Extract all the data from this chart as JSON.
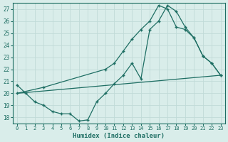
{
  "xlabel": "Humidex (Indice chaleur)",
  "xlim": [
    -0.5,
    23.5
  ],
  "ylim": [
    17.5,
    27.5
  ],
  "yticks": [
    18,
    19,
    20,
    21,
    22,
    23,
    24,
    25,
    26,
    27
  ],
  "xticks": [
    0,
    1,
    2,
    3,
    4,
    5,
    6,
    7,
    8,
    9,
    10,
    11,
    12,
    13,
    14,
    15,
    16,
    17,
    18,
    19,
    20,
    21,
    22,
    23
  ],
  "background_color": "#d9edea",
  "grid_color": "#c0dbd8",
  "line_color": "#1e6e63",
  "curve1_x": [
    0,
    1,
    2,
    3,
    4,
    5,
    6,
    7,
    8,
    9,
    10,
    11,
    12,
    13,
    14,
    15,
    16,
    17,
    18,
    19,
    20,
    21,
    22,
    23
  ],
  "curve1_y": [
    20.7,
    20.0,
    19.3,
    19.0,
    18.5,
    18.3,
    18.3,
    17.7,
    17.8,
    19.3,
    20.0,
    20.8,
    21.5,
    22.5,
    21.2,
    25.3,
    26.0,
    27.3,
    26.8,
    25.5,
    24.6,
    23.1,
    22.5,
    21.5
  ],
  "curve2_x": [
    0,
    3,
    10,
    11,
    12,
    13,
    14,
    15,
    16,
    17,
    18,
    19,
    20,
    21,
    22,
    23
  ],
  "curve2_y": [
    20.0,
    20.5,
    22.0,
    22.5,
    23.5,
    24.5,
    25.3,
    26.0,
    27.3,
    27.0,
    25.5,
    25.3,
    24.6,
    23.1,
    22.5,
    21.5
  ],
  "curve3_x": [
    0,
    23
  ],
  "curve3_y": [
    20.0,
    21.5
  ]
}
